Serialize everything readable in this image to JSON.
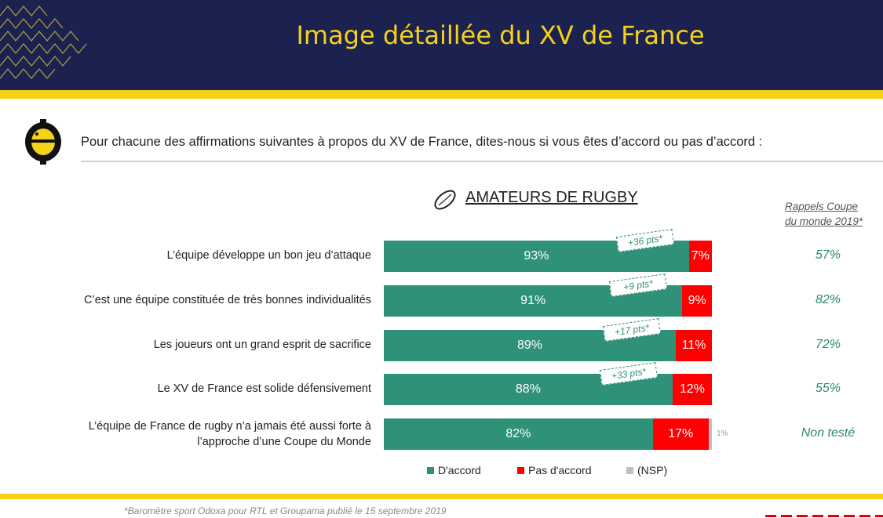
{
  "header": {
    "title": "Image détaillée du XV de France"
  },
  "question": "Pour chacune des affirmations suivantes à propos du XV de France, dites-nous si vous êtes d’accord ou pas d’accord :",
  "segment_title": "AMATEURS DE RUGBY",
  "rappel_header": {
    "line1": "Rappels Coupe",
    "line2": "du monde 2019*"
  },
  "footnote": "*Baromètre sport Odoxa pour RTL et Groupama publié le 15 septembre 2019",
  "colors": {
    "accord": "#2f9178",
    "pas_accord": "#ff0000",
    "nsp": "#c0c0c0",
    "header_bg": "#1b2250",
    "accent": "#f5d118"
  },
  "chart_data": {
    "type": "bar",
    "orientation": "horizontal",
    "stacked": true,
    "categories": [
      "L’équipe développe un bon jeu d’attaque",
      "C’est une équipe constituée de très bonnes individualités",
      "Les joueurs ont un grand esprit de sacrifice",
      "Le XV de France est solide défensivement",
      "L’équipe de France de rugby n’a jamais été aussi forte à l’approche d’une Coupe du Monde"
    ],
    "series": [
      {
        "name": "D'accord",
        "values": [
          93,
          91,
          89,
          88,
          82
        ],
        "labels": [
          "93%",
          "91%",
          "89%",
          "88%",
          "82%"
        ]
      },
      {
        "name": "Pas d'accord",
        "values": [
          7,
          9,
          11,
          12,
          17
        ],
        "labels": [
          "7%",
          "9%",
          "11%",
          "12%",
          "17%"
        ]
      },
      {
        "name": "(NSP)",
        "values": [
          0,
          0,
          0,
          0,
          1
        ],
        "labels": [
          "",
          "",
          "",
          "",
          "1%"
        ]
      }
    ],
    "deltas": [
      "+36 pts*",
      "+9 pts*",
      "+17 pts*",
      "+33 pts*",
      ""
    ],
    "rappels": [
      "57%",
      "82%",
      "72%",
      "55%",
      "Non testé"
    ],
    "xlim": [
      0,
      100
    ],
    "legend_position": "bottom"
  }
}
